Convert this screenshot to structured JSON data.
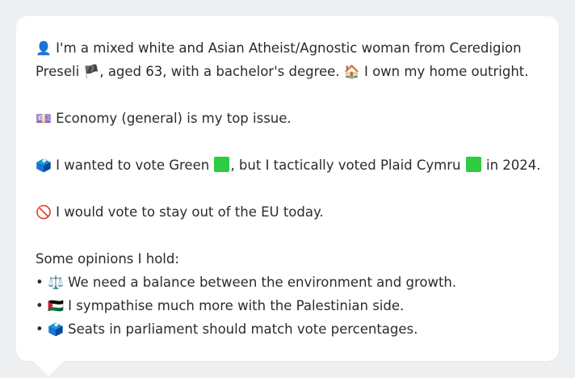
{
  "intro": {
    "icon": "👤",
    "line1": "I'm a mixed white and Asian Atheist/Agnostic woman from Ceredigion",
    "line2_a": "Preseli ",
    "flag": "🏴",
    "line2_b": ", aged 63, with a bachelor's degree. ",
    "home_icon": "🏠",
    "line2_c": " I own my home outright."
  },
  "issue": {
    "icon": "💷",
    "text": "Economy (general) is my top issue."
  },
  "vote": {
    "icon": "🗳️",
    "text_a": "I wanted to vote Green ",
    "text_b": ", but I tactically voted Plaid Cymru ",
    "text_c": " in 2024.",
    "green_color": "#2ecc40",
    "plaid_color": "#2ecc40"
  },
  "eu": {
    "icon": "🚫",
    "text": "I would vote to stay out of the EU today."
  },
  "opinions": {
    "heading": "Some opinions I hold:",
    "bullet": "•",
    "items": [
      {
        "icon": "⚖️",
        "text": "We need a balance between the environment and growth."
      },
      {
        "icon": "🇵🇸",
        "text": "I sympathise much more with the Palestinian side."
      },
      {
        "icon": "🗳️",
        "text": "Seats in parliament should match vote percentages."
      }
    ]
  }
}
